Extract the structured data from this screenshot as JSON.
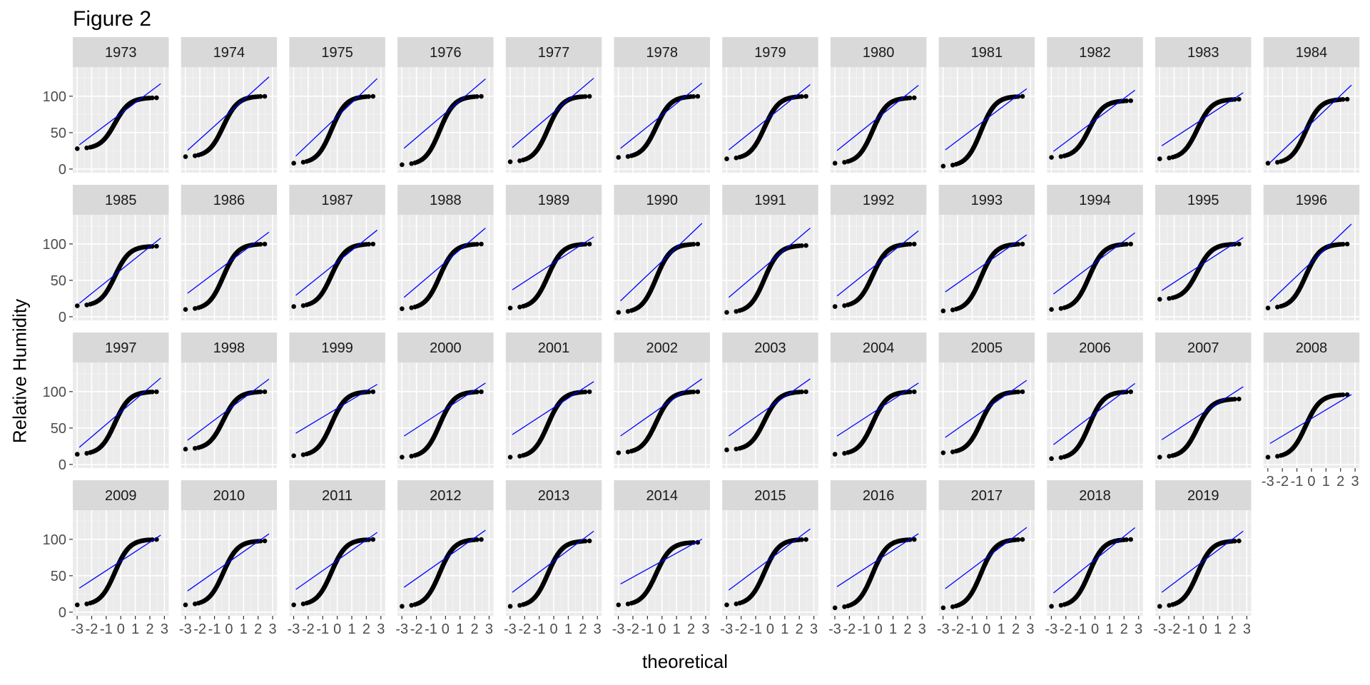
{
  "chart_data": {
    "type": "scatter",
    "title": "Figure 2",
    "xlabel": "theoretical",
    "ylabel": "Relative Humidity",
    "xlim": [
      -3.3,
      3.3
    ],
    "ylim": [
      -5,
      140
    ],
    "x_ticks": [
      "-3",
      "-2",
      "-1",
      "0",
      "1",
      "2",
      "3"
    ],
    "y_ticks": [
      "0",
      "50",
      "100"
    ],
    "grid": true,
    "panel_background": "#EBEBEB",
    "strip_background": "#D9D9D9",
    "point_color": "#000000",
    "line_color": "#0000FF",
    "facets": [
      {
        "label": "1973",
        "min": 28,
        "max": 98,
        "line_intercept": 76,
        "line_slope": 15
      },
      {
        "label": "1974",
        "min": 17,
        "max": 100,
        "line_intercept": 77,
        "line_slope": 18
      },
      {
        "label": "1975",
        "min": 8,
        "max": 100,
        "line_intercept": 72,
        "line_slope": 19
      },
      {
        "label": "1976",
        "min": 6,
        "max": 100,
        "line_intercept": 77,
        "line_slope": 17
      },
      {
        "label": "1977",
        "min": 10,
        "max": 100,
        "line_intercept": 78,
        "line_slope": 17
      },
      {
        "label": "1978",
        "min": 16,
        "max": 100,
        "line_intercept": 74,
        "line_slope": 16
      },
      {
        "label": "1979",
        "min": 14,
        "max": 100,
        "line_intercept": 72,
        "line_slope": 16
      },
      {
        "label": "1980",
        "min": 8,
        "max": 98,
        "line_intercept": 71,
        "line_slope": 16
      },
      {
        "label": "1981",
        "min": 4,
        "max": 100,
        "line_intercept": 69,
        "line_slope": 15
      },
      {
        "label": "1982",
        "min": 16,
        "max": 94,
        "line_intercept": 67,
        "line_slope": 15
      },
      {
        "label": "1983",
        "min": 14,
        "max": 96,
        "line_intercept": 69,
        "line_slope": 13
      },
      {
        "label": "1984",
        "min": 8,
        "max": 96,
        "line_intercept": 63,
        "line_slope": 19
      },
      {
        "label": "1985",
        "min": 15,
        "max": 97,
        "line_intercept": 64,
        "line_slope": 16
      },
      {
        "label": "1986",
        "min": 10,
        "max": 100,
        "line_intercept": 75,
        "line_slope": 15
      },
      {
        "label": "1987",
        "min": 14,
        "max": 100,
        "line_intercept": 75,
        "line_slope": 16
      },
      {
        "label": "1988",
        "min": 11,
        "max": 100,
        "line_intercept": 75,
        "line_slope": 17
      },
      {
        "label": "1989",
        "min": 12,
        "max": 100,
        "line_intercept": 74,
        "line_slope": 13
      },
      {
        "label": "1990",
        "min": 6,
        "max": 100,
        "line_intercept": 76,
        "line_slope": 19
      },
      {
        "label": "1991",
        "min": 6,
        "max": 98,
        "line_intercept": 75,
        "line_slope": 17
      },
      {
        "label": "1992",
        "min": 14,
        "max": 100,
        "line_intercept": 74,
        "line_slope": 16
      },
      {
        "label": "1993",
        "min": 8,
        "max": 100,
        "line_intercept": 74,
        "line_slope": 14
      },
      {
        "label": "1994",
        "min": 10,
        "max": 100,
        "line_intercept": 74,
        "line_slope": 15
      },
      {
        "label": "1995",
        "min": 24,
        "max": 100,
        "line_intercept": 73,
        "line_slope": 13
      },
      {
        "label": "1996",
        "min": 12,
        "max": 100,
        "line_intercept": 75,
        "line_slope": 19
      },
      {
        "label": "1997",
        "min": 14,
        "max": 100,
        "line_intercept": 72,
        "line_slope": 17
      },
      {
        "label": "1998",
        "min": 21,
        "max": 100,
        "line_intercept": 76,
        "line_slope": 15
      },
      {
        "label": "1999",
        "min": 12,
        "max": 100,
        "line_intercept": 77,
        "line_slope": 12
      },
      {
        "label": "2000",
        "min": 10,
        "max": 100,
        "line_intercept": 76,
        "line_slope": 13
      },
      {
        "label": "2001",
        "min": 10,
        "max": 100,
        "line_intercept": 78,
        "line_slope": 13
      },
      {
        "label": "2002",
        "min": 16,
        "max": 100,
        "line_intercept": 79,
        "line_slope": 14
      },
      {
        "label": "2003",
        "min": 20,
        "max": 100,
        "line_intercept": 79,
        "line_slope": 14
      },
      {
        "label": "2004",
        "min": 14,
        "max": 100,
        "line_intercept": 76,
        "line_slope": 13
      },
      {
        "label": "2005",
        "min": 16,
        "max": 100,
        "line_intercept": 77,
        "line_slope": 14
      },
      {
        "label": "2006",
        "min": 8,
        "max": 100,
        "line_intercept": 70,
        "line_slope": 15
      },
      {
        "label": "2007",
        "min": 10,
        "max": 90,
        "line_intercept": 71,
        "line_slope": 13
      },
      {
        "label": "2008",
        "min": 10,
        "max": 96,
        "line_intercept": 63,
        "line_slope": 12
      },
      {
        "label": "2009",
        "min": 10,
        "max": 100,
        "line_intercept": 70,
        "line_slope": 13
      },
      {
        "label": "2010",
        "min": 10,
        "max": 98,
        "line_intercept": 69,
        "line_slope": 14
      },
      {
        "label": "2011",
        "min": 10,
        "max": 100,
        "line_intercept": 71,
        "line_slope": 14
      },
      {
        "label": "2012",
        "min": 8,
        "max": 100,
        "line_intercept": 74,
        "line_slope": 14
      },
      {
        "label": "2013",
        "min": 8,
        "max": 98,
        "line_intercept": 70,
        "line_slope": 15
      },
      {
        "label": "2014",
        "min": 10,
        "max": 96,
        "line_intercept": 70,
        "line_slope": 11
      },
      {
        "label": "2015",
        "min": 10,
        "max": 100,
        "line_intercept": 73,
        "line_slope": 15
      },
      {
        "label": "2016",
        "min": 6,
        "max": 100,
        "line_intercept": 72,
        "line_slope": 13
      },
      {
        "label": "2017",
        "min": 6,
        "max": 100,
        "line_intercept": 75,
        "line_slope": 15
      },
      {
        "label": "2018",
        "min": 8,
        "max": 100,
        "line_intercept": 72,
        "line_slope": 16
      },
      {
        "label": "2019",
        "min": 8,
        "max": 98,
        "line_intercept": 70,
        "line_slope": 15
      }
    ]
  }
}
